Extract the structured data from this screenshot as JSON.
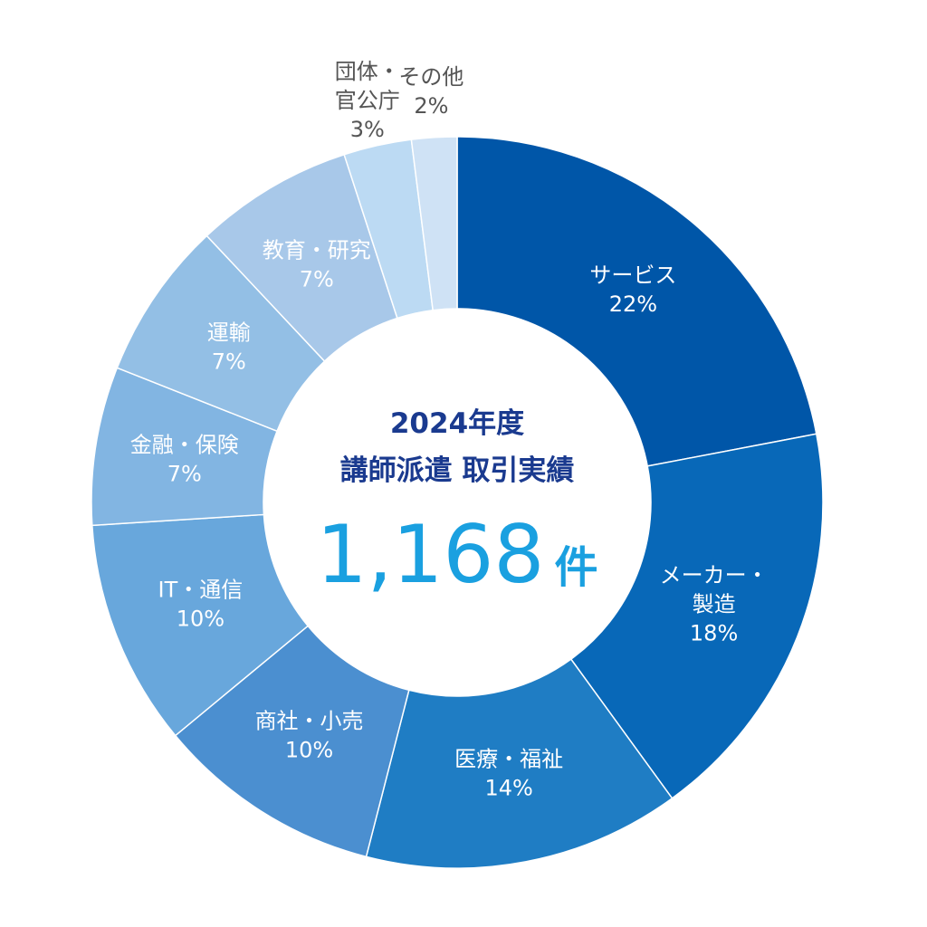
{
  "chart_data": {
    "type": "pie",
    "center": {
      "line1": "2024年度",
      "line2": "講師派遣 取引実績",
      "total": "1,168",
      "unit": "件"
    },
    "slices": [
      {
        "label": [
          "サービス"
        ],
        "value": 22,
        "value_text": "22%",
        "color": "#0056a8",
        "text_color": "#ffffff"
      },
      {
        "label": [
          "メーカー・",
          "製造"
        ],
        "value": 18,
        "value_text": "18%",
        "color": "#0868b8",
        "text_color": "#ffffff"
      },
      {
        "label": [
          "医療・福祉"
        ],
        "value": 14,
        "value_text": "14%",
        "color": "#1f7dc4",
        "text_color": "#ffffff"
      },
      {
        "label": [
          "商社・小売"
        ],
        "value": 10,
        "value_text": "10%",
        "color": "#4b8fd0",
        "text_color": "#ffffff"
      },
      {
        "label": [
          "IT・通信"
        ],
        "value": 10,
        "value_text": "10%",
        "color": "#68a7dc",
        "text_color": "#ffffff"
      },
      {
        "label": [
          "金融・保険"
        ],
        "value": 7,
        "value_text": "7%",
        "color": "#82b5e2",
        "text_color": "#ffffff"
      },
      {
        "label": [
          "運輸"
        ],
        "value": 7,
        "value_text": "7%",
        "color": "#93bfe5",
        "text_color": "#ffffff"
      },
      {
        "label": [
          "教育・研究"
        ],
        "value": 7,
        "value_text": "7%",
        "color": "#a8c8e9",
        "text_color": "#ffffff"
      },
      {
        "label": [
          "団体・",
          "官公庁"
        ],
        "value": 3,
        "value_text": "3%",
        "color": "#bcdaf3",
        "text_color": "#555555",
        "outside": true
      },
      {
        "label": [
          "その他"
        ],
        "value": 2,
        "value_text": "2%",
        "color": "#cfe2f5",
        "text_color": "#555555",
        "outside": true
      }
    ]
  }
}
